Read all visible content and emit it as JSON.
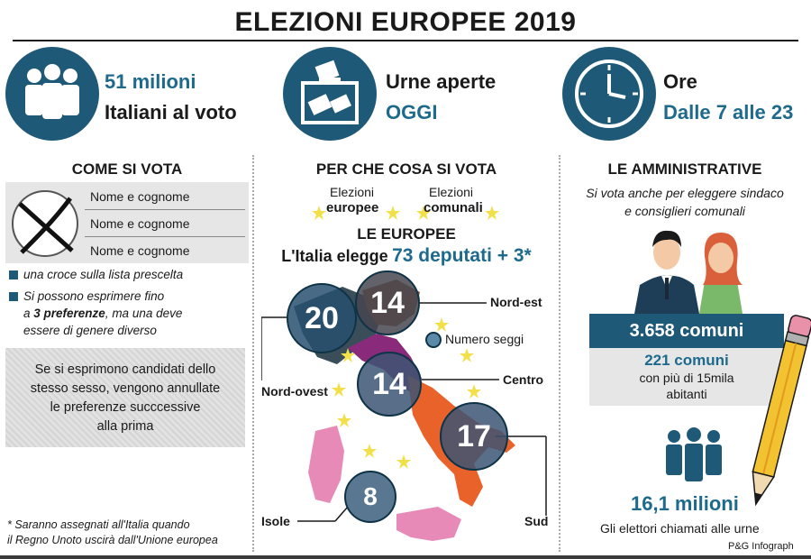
{
  "title": "ELEZIONI EUROPEE 2019",
  "stats": [
    {
      "icon": "people-group-icon",
      "top": "51 milioni",
      "bottom": "Italiani al voto"
    },
    {
      "icon": "ballot-box-icon",
      "top": "Urne aperte",
      "bottom": "OGGI"
    },
    {
      "icon": "clock-icon",
      "top": "Ore",
      "bottom": "Dalle 7 alle 23"
    }
  ],
  "come_si_vota": {
    "heading": "COME SI VOTA",
    "names": [
      "Nome e cognome",
      "Nome e cognome",
      "Nome e cognome"
    ],
    "bullet1": "una croce sulla lista prescelta",
    "bullet2_a": "Si possono esprimere fino",
    "bullet2_b_prefix": "a ",
    "bullet2_b_bold": "3 preferenze",
    "bullet2_b_suffix": ", ma una deve",
    "bullet2_c": "essere di genere diverso",
    "warning_lines": [
      "Se si esprimono candidati dello",
      "stesso sesso, vengono annullate",
      "le preferenze succcessive",
      "alla prima"
    ],
    "footnote_lines": [
      "* Saranno assegnati all'Italia quando",
      "il Regno Unoto uscirà dall'Unione europea"
    ]
  },
  "per_che_cosa": {
    "heading": "PER CHE COSA SI VOTA",
    "option1_top": "Elezioni",
    "option1_bottom": "europee",
    "option2_top": "Elezioni",
    "option2_bottom": "comunali",
    "le_europee": "LE EUROPEE",
    "elegge_prefix": "L'Italia elegge",
    "elegge_value": "73 deputati + 3*",
    "legend": "Numero seggi",
    "regions": [
      {
        "name": "Nord-ovest",
        "seats": "20"
      },
      {
        "name": "Nord-est",
        "seats": "14"
      },
      {
        "name": "Centro",
        "seats": "14"
      },
      {
        "name": "Sud",
        "seats": "17"
      },
      {
        "name": "Isole",
        "seats": "8"
      }
    ]
  },
  "amministrative": {
    "heading": "LE AMMINISTRATIVE",
    "desc_lines": [
      "Si vota anche per eleggere sindaco",
      "e consiglieri comunali"
    ],
    "comuni": "3.658 comuni",
    "big_comuni": "221 comuni",
    "big_comuni_desc_lines": [
      "con più di 15mila",
      "abitanti"
    ],
    "electors": "16,1 milioni",
    "electors_desc": "Gli elettori chiamati alle urne"
  },
  "credit": "P&G Infograph",
  "colors": {
    "teal": "#1e5a78",
    "accent_text": "#1e6a8c",
    "orange": "#e8622a",
    "pink": "#e88ab8",
    "purple": "#8a2a7a",
    "brown": "#8a5a3a",
    "star": "#f2e04a"
  }
}
